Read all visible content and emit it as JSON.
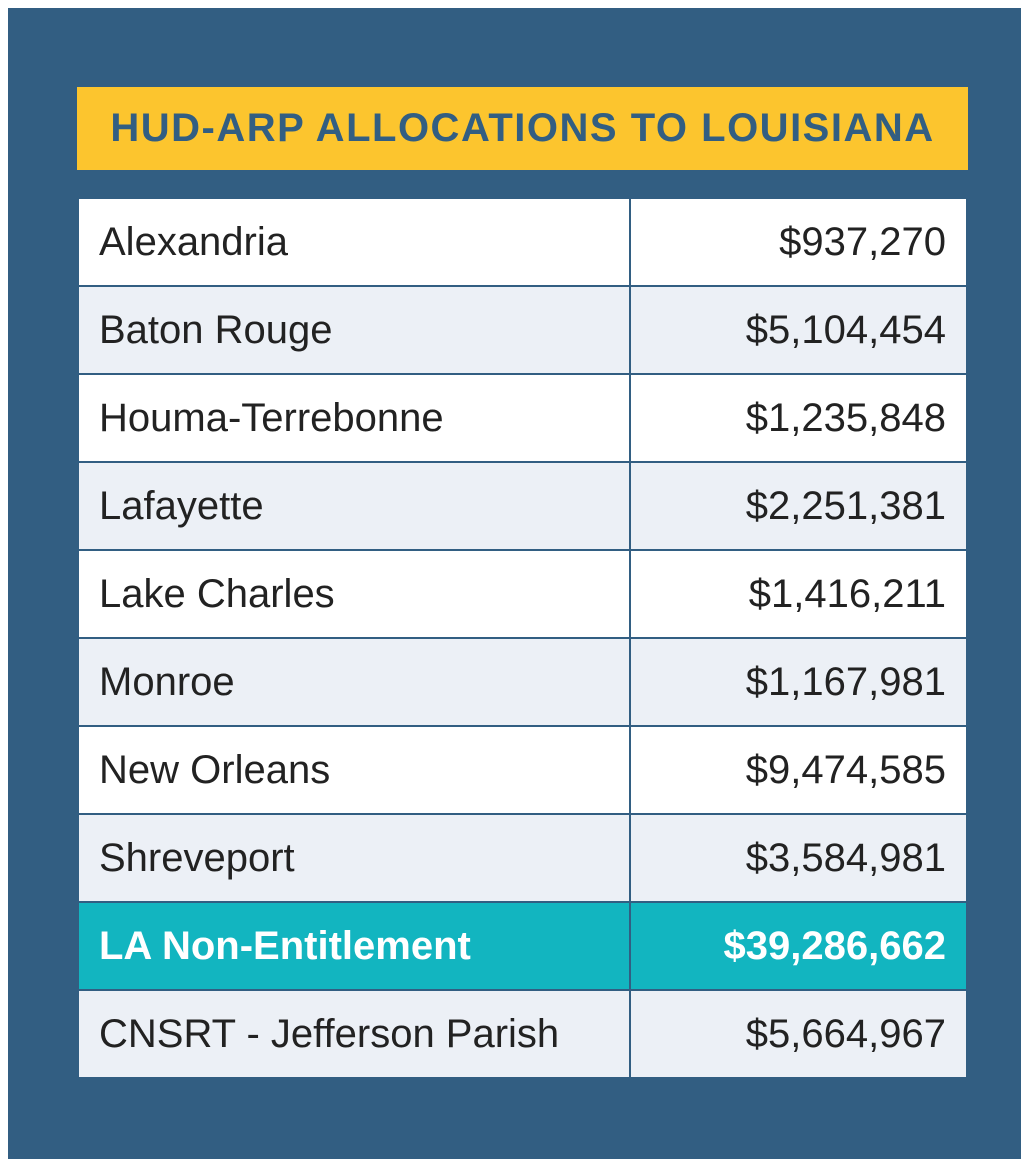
{
  "title": "HUD-ARP ALLOCATIONS TO LOUISIANA",
  "colors": {
    "panel": "#325e82",
    "title_bg": "#fcc52e",
    "row_alt": "#ecf0f6",
    "highlight": "#12b5c0"
  },
  "chart_data": {
    "type": "table",
    "title": "HUD-ARP ALLOCATIONS TO LOUISIANA",
    "rows": [
      {
        "name": "Alexandria",
        "amount": "$937,270",
        "value": 937270,
        "highlight": false
      },
      {
        "name": "Baton Rouge",
        "amount": "$5,104,454",
        "value": 5104454,
        "highlight": false
      },
      {
        "name": "Houma-Terrebonne",
        "amount": "$1,235,848",
        "value": 1235848,
        "highlight": false
      },
      {
        "name": "Lafayette",
        "amount": "$2,251,381",
        "value": 2251381,
        "highlight": false
      },
      {
        "name": "Lake Charles",
        "amount": "$1,416,211",
        "value": 1416211,
        "highlight": false
      },
      {
        "name": "Monroe",
        "amount": "$1,167,981",
        "value": 1167981,
        "highlight": false
      },
      {
        "name": "New Orleans",
        "amount": "$9,474,585",
        "value": 9474585,
        "highlight": false
      },
      {
        "name": "Shreveport",
        "amount": "$3,584,981",
        "value": 3584981,
        "highlight": false
      },
      {
        "name": "LA Non-Entitlement",
        "amount": "$39,286,662",
        "value": 39286662,
        "highlight": true
      },
      {
        "name": "CNSRT - Jefferson Parish",
        "amount": "$5,664,967",
        "value": 5664967,
        "highlight": false
      }
    ]
  }
}
